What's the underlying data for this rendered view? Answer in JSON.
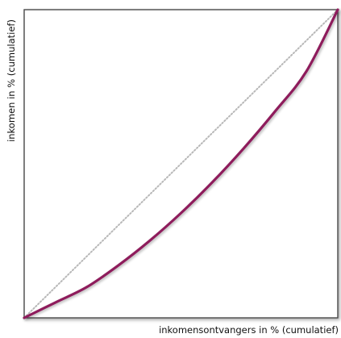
{
  "chart_data": {
    "type": "line",
    "title": "",
    "xlabel": "inkomensontvangers in % (cumulatief)",
    "ylabel": "inkomen in % (cumulatief)",
    "xlim": [
      0,
      100
    ],
    "ylim": [
      0,
      100
    ],
    "grid": false,
    "legend": "none",
    "series": [
      {
        "style": "dotted",
        "color": "#b8b8b8",
        "x": [
          0,
          100
        ],
        "y": [
          0,
          100
        ]
      },
      {
        "style": "solid",
        "color": "#8e1f5c",
        "x": [
          0,
          10,
          20,
          30,
          40,
          50,
          60,
          70,
          80,
          90,
          100
        ],
        "y": [
          0,
          5,
          10,
          17,
          25,
          34,
          44,
          55,
          67,
          80,
          100
        ]
      }
    ]
  }
}
